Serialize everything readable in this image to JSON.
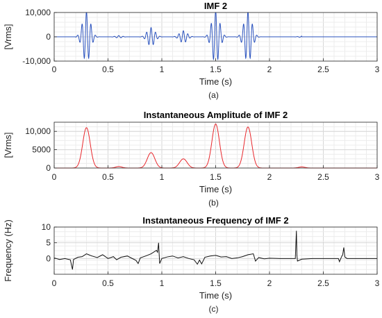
{
  "chart_data": [
    {
      "type": "line",
      "title": "IMF 2",
      "xlabel": "Time (s)",
      "ylabel": "[Vrms]",
      "caption": "(a)",
      "xlim": [
        0,
        3
      ],
      "ylim": [
        -10000,
        10000
      ],
      "xticks": [
        "0",
        "0.5",
        "1",
        "1.5",
        "2",
        "2.5",
        "3"
      ],
      "yticks": [
        {
          "v": 10000,
          "label": "10,000"
        },
        {
          "v": 0,
          "label": "0"
        },
        {
          "v": -10000,
          "label": "-10,000"
        }
      ],
      "grid": true,
      "color": "#2a52be",
      "series": [
        {
          "signal": "bursts",
          "x_start": 0.2,
          "x_end": 2.3,
          "bursts": [
            {
              "t": 0.3,
              "amp": 10500,
              "width": 0.035
            },
            {
              "t": 0.6,
              "amp": 500,
              "width": 0.03
            },
            {
              "t": 0.9,
              "amp": 3800,
              "width": 0.035
            },
            {
              "t": 1.2,
              "amp": 2500,
              "width": 0.035
            },
            {
              "t": 1.5,
              "amp": 11000,
              "width": 0.035
            },
            {
              "t": 1.8,
              "amp": 10500,
              "width": 0.035
            },
            {
              "t": 2.3,
              "amp": 300,
              "width": 0.03
            }
          ]
        }
      ]
    },
    {
      "type": "line",
      "title": "Instantaneous Amplitude of IMF 2",
      "xlabel": "Time (s)",
      "ylabel": "[Vrms]",
      "caption": "(b)",
      "xlim": [
        0,
        3
      ],
      "ylim": [
        0,
        12500
      ],
      "xticks": [
        "0",
        "0.5",
        "1",
        "1.5",
        "2",
        "2.5",
        "3"
      ],
      "yticks": [
        {
          "v": 10000,
          "label": "10,000"
        },
        {
          "v": 5000,
          "label": "5000"
        },
        {
          "v": 0,
          "label": "0"
        }
      ],
      "grid": true,
      "color": "#e8262b",
      "series": [
        {
          "signal": "envelope",
          "x_start": 0,
          "x_end": 3,
          "bursts": [
            {
              "t": 0.3,
              "amp": 11000,
              "width": 0.035
            },
            {
              "t": 0.6,
              "amp": 400,
              "width": 0.03
            },
            {
              "t": 0.9,
              "amp": 4200,
              "width": 0.035
            },
            {
              "t": 1.2,
              "amp": 2500,
              "width": 0.035
            },
            {
              "t": 1.5,
              "amp": 12000,
              "width": 0.035
            },
            {
              "t": 1.8,
              "amp": 11200,
              "width": 0.035
            },
            {
              "t": 2.3,
              "amp": 300,
              "width": 0.03
            }
          ]
        }
      ]
    },
    {
      "type": "line",
      "title": "Instantaneous Frequency of IMF 2",
      "xlabel": "Time (s)",
      "ylabel": "Frequency (Hz)",
      "caption": "(c)",
      "xlim": [
        0,
        3
      ],
      "ylim": [
        -5,
        10
      ],
      "xticks": [
        "0",
        "0.5",
        "1",
        "1.5",
        "2",
        "2.5",
        "3"
      ],
      "yticks": [
        {
          "v": 10,
          "label": "10"
        },
        {
          "v": 5,
          "label": "5"
        },
        {
          "v": 0,
          "label": "0"
        }
      ],
      "grid": true,
      "color": "#111111",
      "series": [
        {
          "signal": "polyline",
          "points": [
            [
              0.0,
              0.2
            ],
            [
              0.05,
              -0.3
            ],
            [
              0.1,
              0.0
            ],
            [
              0.15,
              -0.4
            ],
            [
              0.17,
              -3.5
            ],
            [
              0.18,
              -0.3
            ],
            [
              0.22,
              0.4
            ],
            [
              0.26,
              0.6
            ],
            [
              0.3,
              1.5
            ],
            [
              0.35,
              0.8
            ],
            [
              0.4,
              0.3
            ],
            [
              0.45,
              1.2
            ],
            [
              0.5,
              0.0
            ],
            [
              0.55,
              0.6
            ],
            [
              0.58,
              -0.4
            ],
            [
              0.62,
              0.4
            ],
            [
              0.68,
              0.8
            ],
            [
              0.72,
              0.1
            ],
            [
              0.76,
              -0.6
            ],
            [
              0.78,
              -1.6
            ],
            [
              0.8,
              0.2
            ],
            [
              0.85,
              0.8
            ],
            [
              0.9,
              1.5
            ],
            [
              0.95,
              2.6
            ],
            [
              0.96,
              2.0
            ],
            [
              0.97,
              5.0
            ],
            [
              0.975,
              1.5
            ],
            [
              0.98,
              -1.6
            ],
            [
              1.0,
              0.0
            ],
            [
              1.05,
              0.5
            ],
            [
              1.1,
              0.8
            ],
            [
              1.15,
              0.2
            ],
            [
              1.2,
              0.6
            ],
            [
              1.25,
              0.0
            ],
            [
              1.3,
              -0.4
            ],
            [
              1.33,
              -1.8
            ],
            [
              1.35,
              -0.5
            ],
            [
              1.37,
              -1.7
            ],
            [
              1.4,
              0.4
            ],
            [
              1.45,
              0.8
            ],
            [
              1.5,
              1.0
            ],
            [
              1.55,
              0.5
            ],
            [
              1.6,
              0.6
            ],
            [
              1.65,
              0.0
            ],
            [
              1.7,
              0.2
            ],
            [
              1.75,
              0.6
            ],
            [
              1.8,
              1.2
            ],
            [
              1.85,
              1.5
            ],
            [
              1.87,
              -0.8
            ],
            [
              1.9,
              0.3
            ],
            [
              1.95,
              -0.1
            ],
            [
              2.0,
              0.1
            ],
            [
              2.1,
              0.0
            ],
            [
              2.2,
              0.0
            ],
            [
              2.24,
              0.0
            ],
            [
              2.25,
              8.8
            ],
            [
              2.255,
              1.0
            ],
            [
              2.26,
              -0.8
            ],
            [
              2.3,
              -0.2
            ],
            [
              2.4,
              0.0
            ],
            [
              2.5,
              0.0
            ],
            [
              2.6,
              0.0
            ],
            [
              2.64,
              0.0
            ],
            [
              2.65,
              -1.0
            ],
            [
              2.67,
              0.6
            ],
            [
              2.68,
              1.2
            ],
            [
              2.69,
              3.5
            ],
            [
              2.7,
              0.5
            ],
            [
              2.72,
              0.0
            ],
            [
              2.8,
              0.0
            ],
            [
              3.0,
              0.0
            ]
          ]
        }
      ]
    }
  ]
}
